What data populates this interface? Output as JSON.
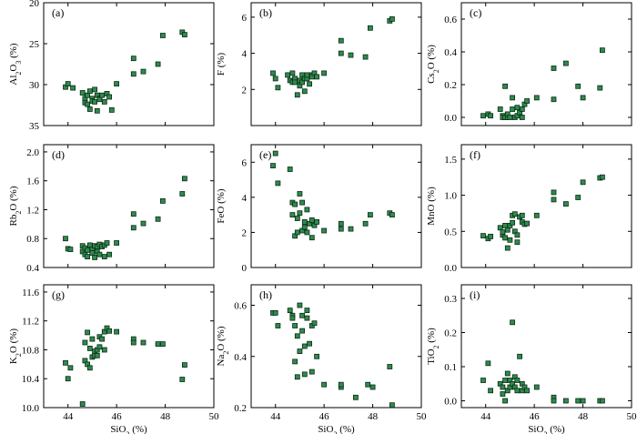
{
  "chart_data": [
    {
      "type": "scatter",
      "panel": "(a)",
      "ylabel": "Al₂O₃ (%)",
      "xlabel": "",
      "xlim": [
        43,
        50
      ],
      "ylim": [
        20,
        35
      ],
      "y_inverted": true,
      "xticks": [
        44,
        46,
        48,
        50
      ],
      "yticks": [
        20,
        25,
        30,
        35
      ],
      "show_x_ticklabels": false,
      "x": [
        43.9,
        44.0,
        44.2,
        44.6,
        44.7,
        44.7,
        44.8,
        44.8,
        44.9,
        44.9,
        45.0,
        45.0,
        45.1,
        45.1,
        45.2,
        45.2,
        45.3,
        45.3,
        45.4,
        45.5,
        45.6,
        45.7,
        45.8,
        46.0,
        46.7,
        46.7,
        47.1,
        47.7,
        47.9,
        48.7,
        48.8
      ],
      "y": [
        30.3,
        29.9,
        30.4,
        31.0,
        31.7,
        32.2,
        31.3,
        32.4,
        30.8,
        33.0,
        31.7,
        32.0,
        32.1,
        30.6,
        31.3,
        33.2,
        31.7,
        31.8,
        31.3,
        32.1,
        31.1,
        31.5,
        33.1,
        29.9,
        28.7,
        26.8,
        28.4,
        27.5,
        24.0,
        23.6,
        23.9
      ]
    },
    {
      "type": "scatter",
      "panel": "(b)",
      "ylabel": "F (%)",
      "xlabel": "",
      "xlim": [
        43,
        50
      ],
      "ylim": [
        0,
        6.8
      ],
      "xticks": [
        44,
        46,
        48,
        50
      ],
      "yticks": [
        2,
        4,
        6
      ],
      "show_x_ticklabels": false,
      "x": [
        43.9,
        44.0,
        44.1,
        44.5,
        44.6,
        44.7,
        44.7,
        44.8,
        44.8,
        44.9,
        45.0,
        45.0,
        45.1,
        45.1,
        45.2,
        45.2,
        45.3,
        45.3,
        45.4,
        45.5,
        45.5,
        45.6,
        45.7,
        46.0,
        46.7,
        46.7,
        47.1,
        47.7,
        47.9,
        48.7,
        48.8
      ],
      "y": [
        2.9,
        2.6,
        2.1,
        2.8,
        2.5,
        2.9,
        2.4,
        2.6,
        2.4,
        1.7,
        2.5,
        2.2,
        2.8,
        2.4,
        2.6,
        1.9,
        2.6,
        2.8,
        2.3,
        2.8,
        2.7,
        2.9,
        2.7,
        2.9,
        4.7,
        4.0,
        3.9,
        3.8,
        5.4,
        5.8,
        5.9
      ]
    },
    {
      "type": "scatter",
      "panel": "(c)",
      "ylabel": "Cs₂O (%)",
      "xlabel": "",
      "xlim": [
        43,
        50
      ],
      "ylim": [
        -0.05,
        0.7
      ],
      "xticks": [
        44,
        46,
        48,
        50
      ],
      "yticks": [
        0.0,
        0.2,
        0.4,
        0.6
      ],
      "show_x_ticklabels": false,
      "x": [
        43.9,
        44.1,
        44.2,
        44.6,
        44.7,
        44.7,
        44.8,
        44.8,
        44.9,
        44.9,
        45.0,
        45.1,
        45.1,
        45.2,
        45.3,
        45.3,
        45.4,
        45.5,
        45.5,
        45.6,
        45.7,
        46.1,
        46.8,
        46.8,
        47.3,
        47.8,
        48.0,
        48.7,
        48.8
      ],
      "y": [
        0.01,
        0.02,
        0.01,
        0.05,
        0.01,
        0.0,
        0.0,
        0.19,
        0.0,
        0.02,
        0.0,
        0.12,
        0.05,
        0.0,
        0.06,
        0.01,
        0.03,
        0.05,
        0.0,
        0.08,
        0.1,
        0.12,
        0.3,
        0.11,
        0.33,
        0.19,
        0.12,
        0.18,
        0.41
      ]
    },
    {
      "type": "scatter",
      "panel": "(d)",
      "ylabel": "Rb₂O (%)",
      "xlabel": "",
      "xlim": [
        43,
        50
      ],
      "ylim": [
        0.4,
        2.1
      ],
      "xticks": [
        44,
        46,
        48,
        50
      ],
      "yticks": [
        0.4,
        0.8,
        1.2,
        1.6,
        2.0
      ],
      "show_x_ticklabels": false,
      "x": [
        43.9,
        44.0,
        44.1,
        44.6,
        44.6,
        44.7,
        44.7,
        44.8,
        44.8,
        44.9,
        45.0,
        45.0,
        45.1,
        45.1,
        45.2,
        45.2,
        45.3,
        45.3,
        45.4,
        45.5,
        45.5,
        45.6,
        45.7,
        46.0,
        46.7,
        46.7,
        47.1,
        47.7,
        47.9,
        48.7,
        48.8
      ],
      "y": [
        0.8,
        0.66,
        0.65,
        0.7,
        0.62,
        0.67,
        0.58,
        0.64,
        0.55,
        0.71,
        0.65,
        0.6,
        0.7,
        0.54,
        0.69,
        0.62,
        0.72,
        0.58,
        0.69,
        0.55,
        0.71,
        0.74,
        0.58,
        0.74,
        1.14,
        0.95,
        1.01,
        1.07,
        1.32,
        1.42,
        1.63
      ]
    },
    {
      "type": "scatter",
      "panel": "(e)",
      "ylabel": "FeO (%)",
      "xlabel": "",
      "xlim": [
        43,
        50
      ],
      "ylim": [
        0,
        7
      ],
      "xticks": [
        44,
        46,
        48,
        50
      ],
      "yticks": [
        0,
        2,
        4,
        6
      ],
      "show_x_ticklabels": false,
      "x": [
        43.9,
        44.0,
        44.1,
        44.6,
        44.7,
        44.7,
        44.8,
        44.8,
        44.9,
        44.9,
        45.0,
        45.0,
        45.1,
        45.1,
        45.2,
        45.2,
        45.3,
        45.3,
        45.4,
        45.5,
        45.5,
        45.6,
        45.7,
        46.0,
        46.7,
        46.7,
        47.1,
        47.7,
        47.9,
        48.7,
        48.8
      ],
      "y": [
        5.8,
        6.5,
        4.8,
        5.6,
        3.7,
        3.0,
        3.6,
        1.8,
        2.8,
        2.0,
        4.2,
        3.1,
        2.1,
        3.7,
        2.3,
        2.6,
        3.3,
        2.0,
        2.5,
        2.7,
        1.7,
        2.4,
        2.6,
        2.1,
        2.5,
        2.2,
        2.2,
        2.5,
        3.0,
        3.1,
        3.0
      ]
    },
    {
      "type": "scatter",
      "panel": "(f)",
      "ylabel": "MnO (%)",
      "xlabel": "",
      "xlim": [
        43,
        50
      ],
      "ylim": [
        0,
        1.7
      ],
      "xticks": [
        44,
        46,
        48,
        50
      ],
      "yticks": [
        0.0,
        0.5,
        1.0,
        1.5
      ],
      "show_x_ticklabels": false,
      "x": [
        43.9,
        44.1,
        44.2,
        44.6,
        44.7,
        44.7,
        44.8,
        44.8,
        44.9,
        44.9,
        45.0,
        45.0,
        45.1,
        45.1,
        45.2,
        45.2,
        45.3,
        45.3,
        45.4,
        45.5,
        45.5,
        45.6,
        45.7,
        46.1,
        46.8,
        46.8,
        47.3,
        47.8,
        48.0,
        48.7,
        48.8
      ],
      "y": [
        0.44,
        0.4,
        0.43,
        0.55,
        0.45,
        0.49,
        0.41,
        0.58,
        0.27,
        0.52,
        0.38,
        0.58,
        0.62,
        0.72,
        0.5,
        0.74,
        0.35,
        0.45,
        0.7,
        0.72,
        0.63,
        0.6,
        0.61,
        0.72,
        1.04,
        0.94,
        0.88,
        0.97,
        1.18,
        1.24,
        1.25
      ]
    },
    {
      "type": "scatter",
      "panel": "(g)",
      "ylabel": "K₂O (%)",
      "xlabel": "SiO₂ (%)",
      "xlim": [
        43,
        50
      ],
      "ylim": [
        10.0,
        11.7
      ],
      "xticks": [
        44,
        46,
        48,
        50
      ],
      "yticks": [
        10.0,
        10.4,
        10.8,
        11.2,
        11.6
      ],
      "show_x_ticklabels": true,
      "x": [
        43.9,
        44.0,
        44.1,
        44.6,
        44.7,
        44.7,
        44.8,
        44.8,
        44.9,
        44.9,
        45.0,
        45.0,
        45.1,
        45.1,
        45.2,
        45.2,
        45.3,
        45.3,
        45.4,
        45.5,
        45.5,
        45.6,
        45.7,
        46.0,
        46.7,
        46.7,
        47.1,
        47.7,
        47.9,
        48.7,
        48.8
      ],
      "y": [
        10.62,
        10.4,
        10.55,
        10.05,
        10.65,
        10.9,
        10.6,
        11.04,
        10.55,
        10.82,
        10.7,
        10.95,
        10.78,
        10.72,
        10.8,
        10.72,
        10.98,
        10.84,
        10.95,
        10.8,
        11.05,
        11.1,
        11.06,
        11.05,
        10.95,
        10.9,
        10.9,
        10.88,
        10.88,
        10.39,
        10.59
      ]
    },
    {
      "type": "scatter",
      "panel": "(h)",
      "ylabel": "Na₂O (%)",
      "xlabel": "SiO₂ (%)",
      "xlim": [
        43,
        50
      ],
      "ylim": [
        0.2,
        0.68
      ],
      "xticks": [
        44,
        46,
        48,
        50
      ],
      "yticks": [
        0.2,
        0.4,
        0.6
      ],
      "show_x_ticklabels": true,
      "x": [
        43.9,
        44.0,
        44.1,
        44.6,
        44.7,
        44.7,
        44.8,
        44.8,
        44.9,
        44.9,
        45.0,
        45.0,
        45.1,
        45.1,
        45.2,
        45.2,
        45.3,
        45.3,
        45.4,
        45.5,
        45.5,
        45.6,
        45.7,
        46.0,
        46.7,
        46.7,
        47.3,
        47.8,
        48.0,
        48.7,
        48.8
      ],
      "y": [
        0.57,
        0.57,
        0.52,
        0.58,
        0.56,
        0.55,
        0.52,
        0.38,
        0.48,
        0.32,
        0.6,
        0.42,
        0.56,
        0.5,
        0.44,
        0.33,
        0.58,
        0.55,
        0.45,
        0.34,
        0.52,
        0.53,
        0.4,
        0.29,
        0.28,
        0.29,
        0.24,
        0.29,
        0.28,
        0.36,
        0.21
      ]
    },
    {
      "type": "scatter",
      "panel": "(i)",
      "ylabel": "TiO₂ (%)",
      "xlabel": "SiO₂ (%)",
      "xlim": [
        43,
        50
      ],
      "ylim": [
        -0.02,
        0.34
      ],
      "xticks": [
        44,
        46,
        48,
        50
      ],
      "yticks": [
        0.0,
        0.1,
        0.2,
        0.3
      ],
      "show_x_ticklabels": true,
      "x": [
        43.9,
        44.1,
        44.2,
        44.6,
        44.7,
        44.7,
        44.8,
        44.8,
        44.9,
        44.9,
        45.0,
        45.0,
        45.1,
        45.1,
        45.2,
        45.2,
        45.3,
        45.3,
        45.4,
        45.5,
        45.5,
        45.6,
        45.7,
        46.1,
        46.8,
        46.8,
        47.3,
        47.8,
        48.0,
        48.7,
        48.8
      ],
      "y": [
        0.06,
        0.11,
        0.03,
        0.05,
        0.04,
        0.02,
        0.0,
        0.06,
        0.03,
        0.08,
        0.06,
        0.04,
        0.23,
        0.05,
        0.07,
        0.04,
        0.03,
        0.06,
        0.13,
        0.03,
        0.05,
        0.04,
        0.03,
        0.04,
        0.01,
        0.0,
        0.0,
        0.0,
        0.0,
        0.0,
        0.0
      ]
    }
  ]
}
